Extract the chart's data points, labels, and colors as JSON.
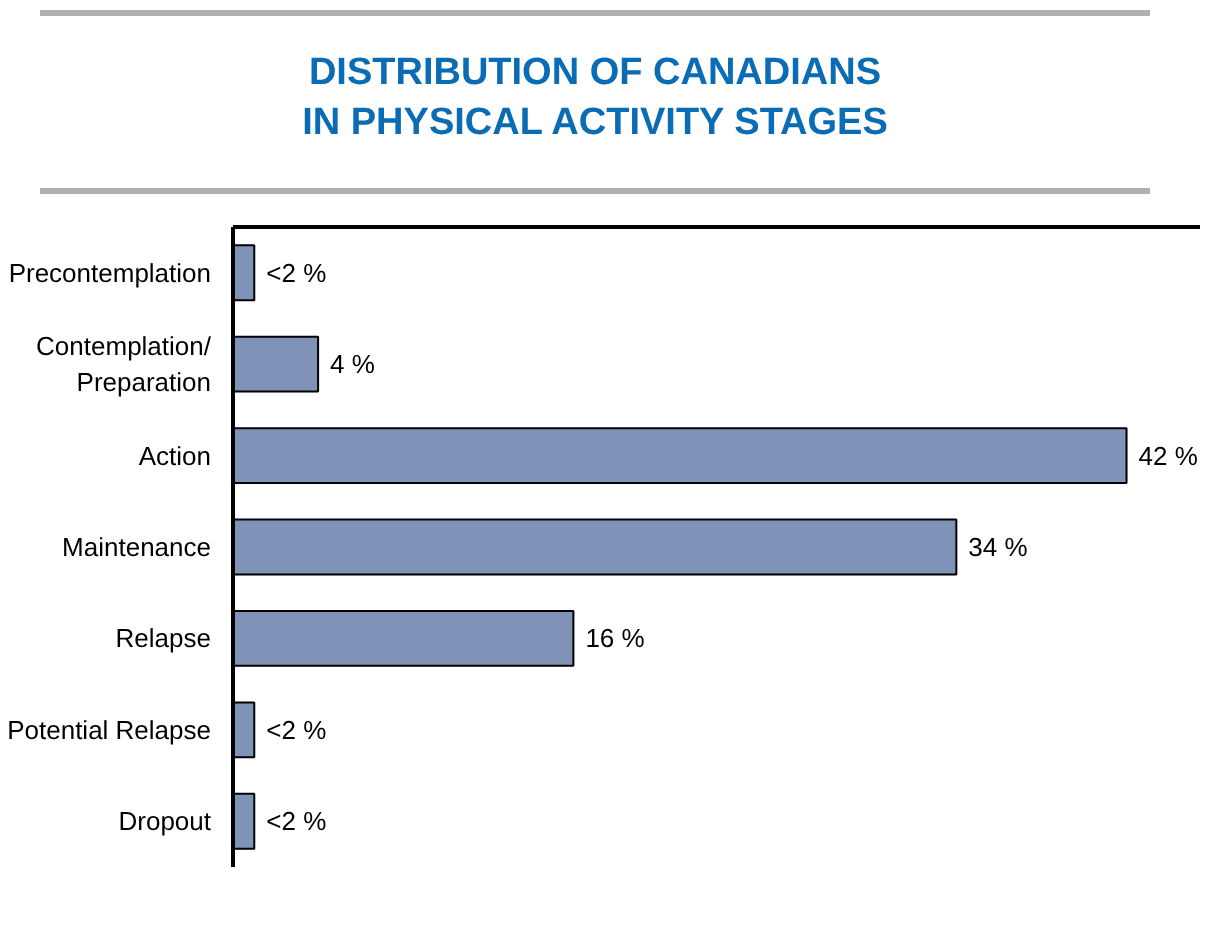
{
  "chart_data": {
    "type": "bar",
    "orientation": "horizontal",
    "title": "DISTRIBUTION OF CANADIANS\nIN PHYSICAL ACTIVITY STAGES",
    "categories": [
      "Precontemplation",
      "Contemplation/\nPreparation",
      "Action",
      "Maintenance",
      "Relapse",
      "Potential Relapse",
      "Dropout"
    ],
    "values": [
      1,
      4,
      42,
      34,
      16,
      1,
      1
    ],
    "value_labels": [
      "<2 %",
      "4 %",
      "42 %",
      "34 %",
      "16 %",
      "<2 %",
      "<2 %"
    ],
    "color": "#7f93b8",
    "xlim": [
      0,
      45.5
    ],
    "grid": false
  }
}
